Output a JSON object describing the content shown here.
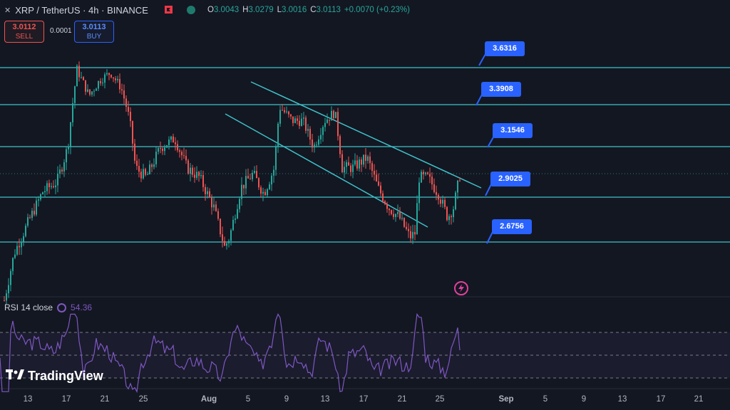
{
  "header": {
    "symbol": "XRP / TetherUS · 4h · BINANCE",
    "close_icon": "close-icon",
    "flag_icon": "flag-icon",
    "flag_color": "#f23645",
    "eye_icon": "eye-icon",
    "ohlc": {
      "o_label": "O",
      "o": "3.0043",
      "h_label": "H",
      "h": "3.0279",
      "l_label": "L",
      "l": "3.0016",
      "c_label": "C",
      "c": "3.0113",
      "change": "+0.0070 (+0.23%)"
    }
  },
  "trade": {
    "sell_price": "3.0112",
    "sell_label": "SELL",
    "spread": "0.0001",
    "buy_price": "3.0113",
    "buy_label": "BUY"
  },
  "levels": [
    {
      "value": 3.6316,
      "label": "3.6316"
    },
    {
      "value": 3.3908,
      "label": "3.3908"
    },
    {
      "value": 3.1546,
      "label": "3.1546"
    },
    {
      "value": 2.9025,
      "label": "2.9025"
    },
    {
      "value": 2.6756,
      "label": "2.6756"
    }
  ],
  "rsi": {
    "label": "RSI 14 close",
    "value": "54.36",
    "color": "#7e57c2",
    "bands": [
      70,
      50,
      30
    ]
  },
  "logo": {
    "text": "TradingView"
  },
  "xaxis": {
    "labels": [
      "13",
      "17",
      "21",
      "25",
      "Aug",
      "5",
      "9",
      "13",
      "17",
      "21",
      "25",
      "Sep",
      "5",
      "9",
      "13",
      "17",
      "21"
    ]
  },
  "alert_icon": "lightning-icon",
  "colors": {
    "background": "#131722",
    "up": "#26a69a",
    "down": "#ef5350",
    "level_line": "#3fc1c9",
    "accent": "#2962ff"
  }
}
